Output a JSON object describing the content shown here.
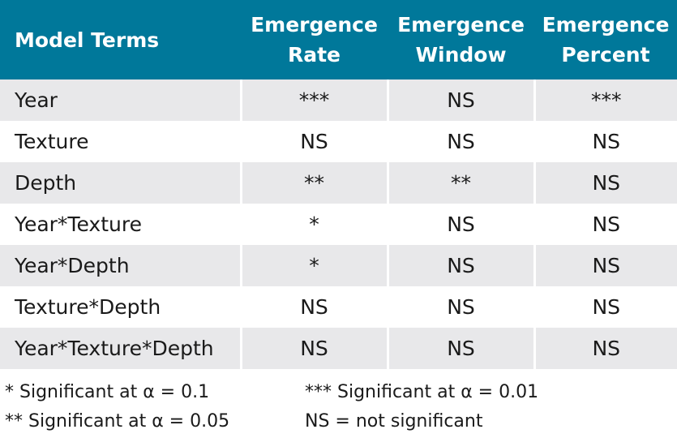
{
  "table": {
    "headers": [
      [
        "Model Terms"
      ],
      [
        "Emergence",
        "Rate"
      ],
      [
        "Emergence",
        "Window"
      ],
      [
        "Emergence",
        "Percent"
      ]
    ],
    "rows": [
      {
        "term": "Year",
        "values": [
          "***",
          "NS",
          "***"
        ]
      },
      {
        "term": "Texture",
        "values": [
          "NS",
          "NS",
          "NS"
        ]
      },
      {
        "term": "Depth",
        "values": [
          "**",
          "**",
          "NS"
        ]
      },
      {
        "term": "Year*Texture",
        "values": [
          "*",
          "NS",
          "NS"
        ]
      },
      {
        "term": "Year*Depth",
        "values": [
          "*",
          "NS",
          "NS"
        ]
      },
      {
        "term": "Texture*Depth",
        "values": [
          "NS",
          "NS",
          "NS"
        ]
      },
      {
        "term": "Year*Texture*Depth",
        "values": [
          "NS",
          "NS",
          "NS"
        ]
      }
    ]
  },
  "notes": {
    "one_star": "* Significant at α = 0.1",
    "two_star": "** Significant at α = 0.05",
    "three_star": "*** Significant at α = 0.01",
    "ns": "NS = not significant"
  },
  "colors": {
    "header_bg": "#00789a",
    "header_text": "#ffffff",
    "row_shade": "#e8e8ea"
  }
}
